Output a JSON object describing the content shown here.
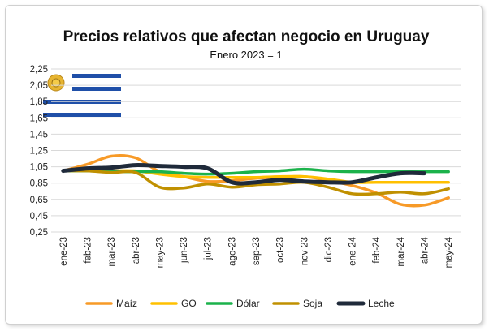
{
  "chart_data": {
    "type": "line",
    "title": "Precios relativos que afectan negocio en Uruguay",
    "subtitle": "Enero 2023 = 1",
    "xlabel": "",
    "ylabel": "",
    "ylim": [
      0.25,
      2.25
    ],
    "yticks": [
      "2,25",
      "2,05",
      "1,85",
      "1,65",
      "1,45",
      "1,25",
      "1,05",
      "0,85",
      "0,65",
      "0,45",
      "0,25"
    ],
    "categories": [
      "ene-23",
      "feb-23",
      "mar-23",
      "abr-23",
      "may-23",
      "jun-23",
      "jul-23",
      "ago-23",
      "sep-23",
      "oct-23",
      "nov-23",
      "dic-23",
      "ene-24",
      "feb-24",
      "mar-24",
      "abr-24",
      "may-24"
    ],
    "legend_position": "bottom",
    "grid": "horizontal",
    "series": [
      {
        "name": "Maíz",
        "color": "#F79A27",
        "values": [
          1.0,
          1.08,
          1.18,
          1.16,
          0.99,
          0.93,
          0.87,
          0.88,
          0.91,
          0.92,
          0.93,
          0.88,
          0.82,
          0.73,
          0.59,
          0.58,
          0.67
        ]
      },
      {
        "name": "GO",
        "color": "#FFC000",
        "values": [
          1.0,
          1.0,
          1.0,
          1.0,
          0.96,
          0.93,
          0.92,
          0.92,
          0.92,
          0.93,
          0.93,
          0.9,
          0.86,
          0.86,
          0.86,
          0.86,
          0.86
        ]
      },
      {
        "name": "Dólar",
        "color": "#1BB24B",
        "values": [
          1.0,
          1.0,
          0.99,
          0.99,
          0.99,
          0.97,
          0.96,
          0.97,
          0.99,
          1.0,
          1.02,
          1.0,
          0.99,
          0.99,
          0.99,
          0.99,
          0.99
        ]
      },
      {
        "name": "Soja",
        "color": "#C09000",
        "values": [
          1.0,
          1.0,
          0.98,
          0.98,
          0.8,
          0.79,
          0.84,
          0.8,
          0.83,
          0.84,
          0.86,
          0.8,
          0.72,
          0.72,
          0.74,
          0.72,
          0.78
        ]
      },
      {
        "name": "Leche",
        "color": "#1F2A3A",
        "values": [
          1.0,
          1.03,
          1.04,
          1.07,
          1.06,
          1.05,
          1.03,
          0.86,
          0.86,
          0.89,
          0.87,
          0.86,
          0.86,
          0.92,
          0.97,
          0.97,
          null
        ]
      }
    ]
  }
}
